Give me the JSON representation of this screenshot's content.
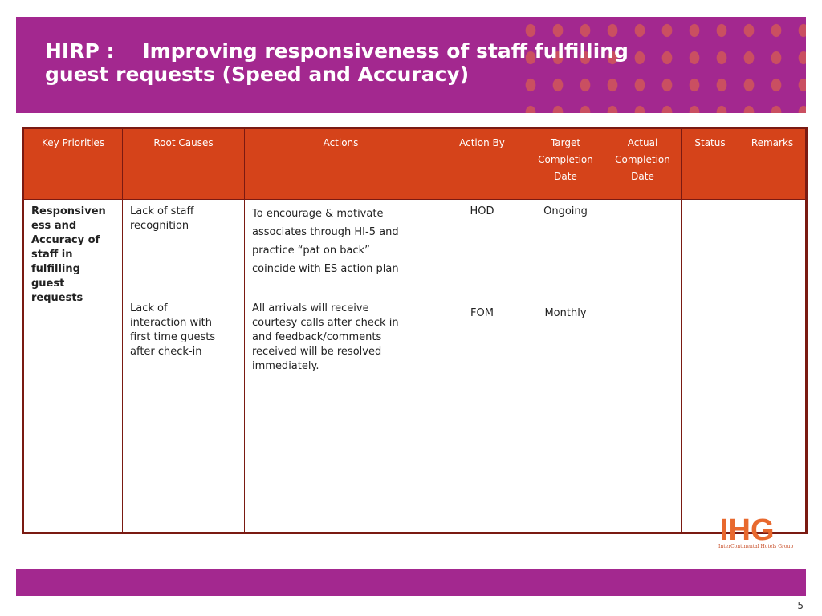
{
  "slide": {
    "title": "HIRP :    Improving responsiveness of staff fulfilling\nguest requests (Speed and Accuracy)",
    "page_number": "5"
  },
  "table": {
    "headers": [
      "Key Priorities",
      "Root Causes",
      "Actions",
      "Action By",
      "Target\nCompletion\nDate",
      "Actual\nCompletion\nDate",
      "Status",
      "Remarks"
    ],
    "key_priority": "Responsiven\ness and\nAccuracy of\nstaff in\nfulfilling\nguest\nrequests",
    "root_causes": [
      "Lack of staff\nrecognition",
      "Lack of\ninteraction with\nfirst time guests\nafter check-in"
    ],
    "actions": [
      "To encourage & motivate\nassociates through HI-5 and\npractice “pat on back”\ncoincide with ES action plan",
      "All arrivals will receive\ncourtesy calls after check in\nand feedback/comments\nreceived will be resolved\nimmediately."
    ],
    "action_by": [
      "HOD",
      "FOM"
    ],
    "target_completion": [
      "Ongoing",
      "Monthly"
    ],
    "actual_completion": "",
    "status": "",
    "remarks": ""
  },
  "logo": {
    "text": "IHG",
    "caption": "InterContinental Hotels Group"
  },
  "colors": {
    "header_band": "#a3288f",
    "table_header": "#d5431a",
    "table_border": "#7a1a12",
    "priority_text": "#8b1a14",
    "logo": "#e8692e"
  }
}
